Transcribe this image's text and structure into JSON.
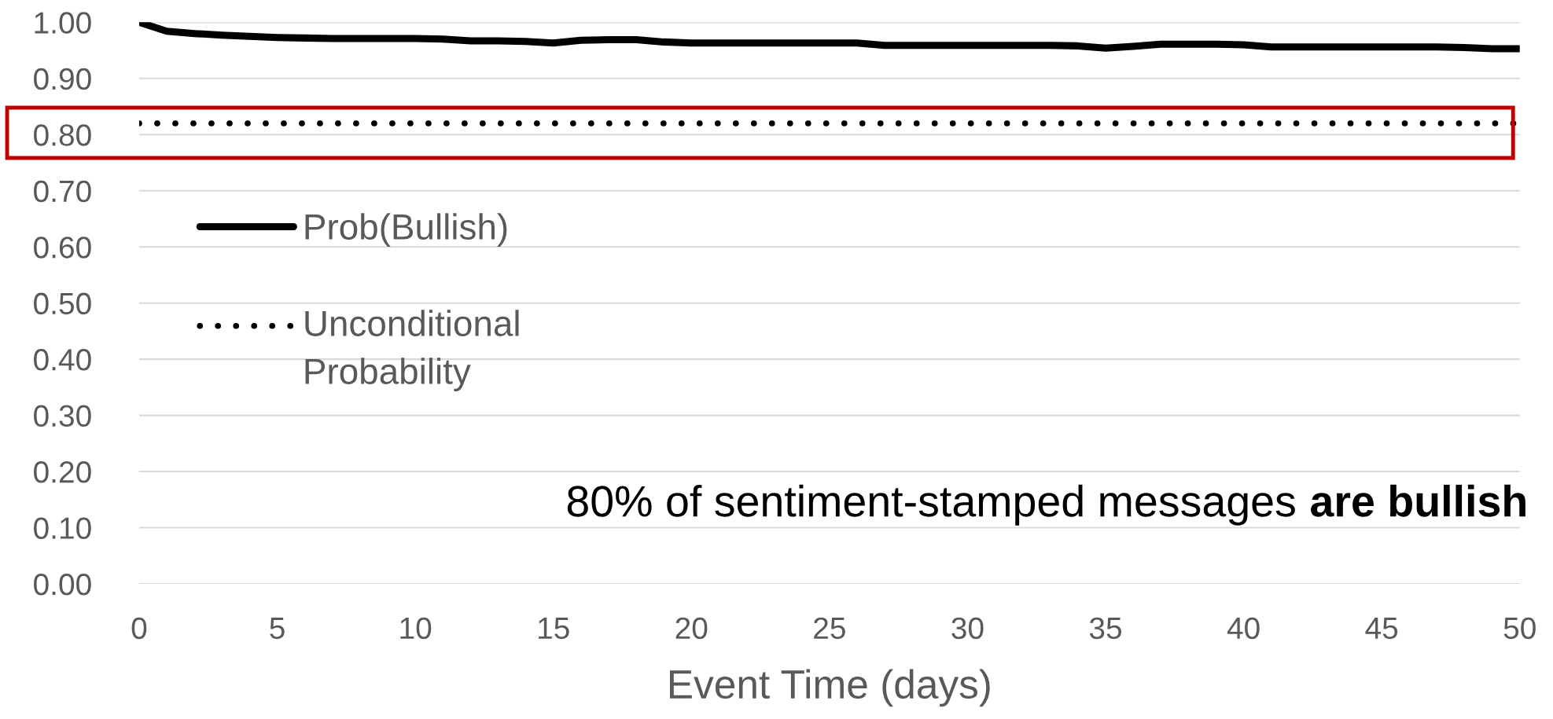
{
  "chart_data": {
    "type": "line",
    "xlabel": "Event Time (days)",
    "series": [
      {
        "name": "Prob(Bullish)",
        "color": "#000000",
        "line_style": "solid",
        "x": [
          0,
          1,
          2,
          3,
          4,
          5,
          6,
          7,
          8,
          9,
          10,
          11,
          12,
          13,
          14,
          15,
          16,
          17,
          18,
          19,
          20,
          21,
          22,
          23,
          24,
          25,
          26,
          27,
          28,
          29,
          30,
          31,
          32,
          33,
          34,
          35,
          36,
          37,
          38,
          39,
          40,
          41,
          42,
          43,
          44,
          45,
          46,
          47,
          48,
          49,
          50
        ],
        "values": [
          1.0,
          0.984,
          0.98,
          0.977,
          0.975,
          0.973,
          0.972,
          0.971,
          0.971,
          0.971,
          0.971,
          0.97,
          0.967,
          0.967,
          0.966,
          0.963,
          0.968,
          0.969,
          0.969,
          0.965,
          0.963,
          0.963,
          0.963,
          0.963,
          0.963,
          0.963,
          0.963,
          0.959,
          0.959,
          0.959,
          0.959,
          0.959,
          0.959,
          0.959,
          0.958,
          0.954,
          0.957,
          0.961,
          0.961,
          0.961,
          0.96,
          0.956,
          0.956,
          0.956,
          0.956,
          0.956,
          0.956,
          0.956,
          0.955,
          0.953,
          0.953
        ]
      },
      {
        "name": "Unconditional\nProbability",
        "color": "#000000",
        "line_style": "dotted",
        "x": [
          0,
          50
        ],
        "values": [
          0.82,
          0.82
        ]
      }
    ],
    "xlim": [
      0,
      50
    ],
    "xticks": [
      0,
      5,
      10,
      15,
      20,
      25,
      30,
      35,
      40,
      45,
      50
    ],
    "ylim": [
      0,
      1
    ],
    "yticks": [
      {
        "value": 0,
        "label": "0.00"
      },
      {
        "value": 0.1,
        "label": "0.10"
      },
      {
        "value": 0.2,
        "label": "0.20"
      },
      {
        "value": 0.3,
        "label": "0.30"
      },
      {
        "value": 0.4,
        "label": "0.40"
      },
      {
        "value": 0.5,
        "label": "0.50"
      },
      {
        "value": 0.6,
        "label": "0.60"
      },
      {
        "value": 0.7,
        "label": "0.70"
      },
      {
        "value": 0.8,
        "label": "0.80"
      },
      {
        "value": 0.9,
        "label": "0.90"
      },
      {
        "value": 1,
        "label": "1.00"
      }
    ],
    "annotations": [
      "80% of sentiment-stamped messages",
      "are bullish"
    ],
    "grid": "y",
    "legend": "left"
  }
}
